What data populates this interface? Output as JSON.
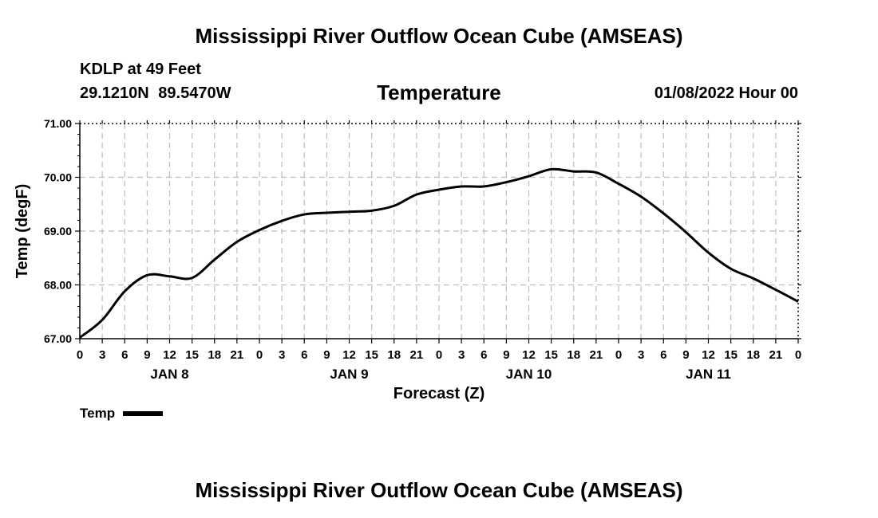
{
  "header": {
    "title": "Mississippi River Outflow Ocean Cube (AMSEAS)",
    "station": "KDLP at 49 Feet",
    "coords": "29.1210N  89.5470W",
    "variable": "Temperature",
    "timestamp": "01/08/2022 Hour 00"
  },
  "footer": {
    "title": "Mississippi River Outflow Ocean Cube (AMSEAS)"
  },
  "legend": {
    "label": "Temp"
  },
  "chart_data": {
    "type": "line",
    "title": "Temperature",
    "xlabel": "Forecast (Z)",
    "ylabel": "Temp (degF)",
    "ylim": [
      67.0,
      71.0
    ],
    "xlim": [
      0,
      96
    ],
    "yticks": [
      "67.00",
      "68.00",
      "69.00",
      "70.00",
      "71.00"
    ],
    "xtick_labels": [
      "0",
      "3",
      "6",
      "9",
      "12",
      "15",
      "18",
      "21",
      "0",
      "3",
      "6",
      "9",
      "12",
      "15",
      "18",
      "21",
      "0",
      "3",
      "6",
      "9",
      "12",
      "15",
      "18",
      "21",
      "0",
      "3",
      "6",
      "9",
      "12",
      "15",
      "18",
      "21",
      "0"
    ],
    "day_labels": [
      {
        "label": "JAN 8",
        "hour": 12
      },
      {
        "label": "JAN 9",
        "hour": 36
      },
      {
        "label": "JAN 10",
        "hour": 60
      },
      {
        "label": "JAN 11",
        "hour": 84
      }
    ],
    "grid": true,
    "series": [
      {
        "name": "Temp",
        "color": "#000000",
        "x": [
          0,
          3,
          6,
          9,
          12,
          15,
          18,
          21,
          24,
          27,
          30,
          33,
          36,
          39,
          42,
          45,
          48,
          51,
          54,
          57,
          60,
          63,
          66,
          69,
          72,
          75,
          78,
          81,
          84,
          87,
          90,
          93,
          96
        ],
        "y": [
          67.02,
          67.35,
          67.88,
          68.18,
          68.16,
          68.13,
          68.47,
          68.8,
          69.02,
          69.19,
          69.31,
          69.34,
          69.36,
          69.38,
          69.47,
          69.68,
          69.77,
          69.83,
          69.83,
          69.91,
          70.02,
          70.15,
          70.11,
          70.09,
          69.88,
          69.64,
          69.33,
          68.98,
          68.6,
          68.3,
          68.12,
          67.91,
          67.69
        ]
      }
    ]
  }
}
